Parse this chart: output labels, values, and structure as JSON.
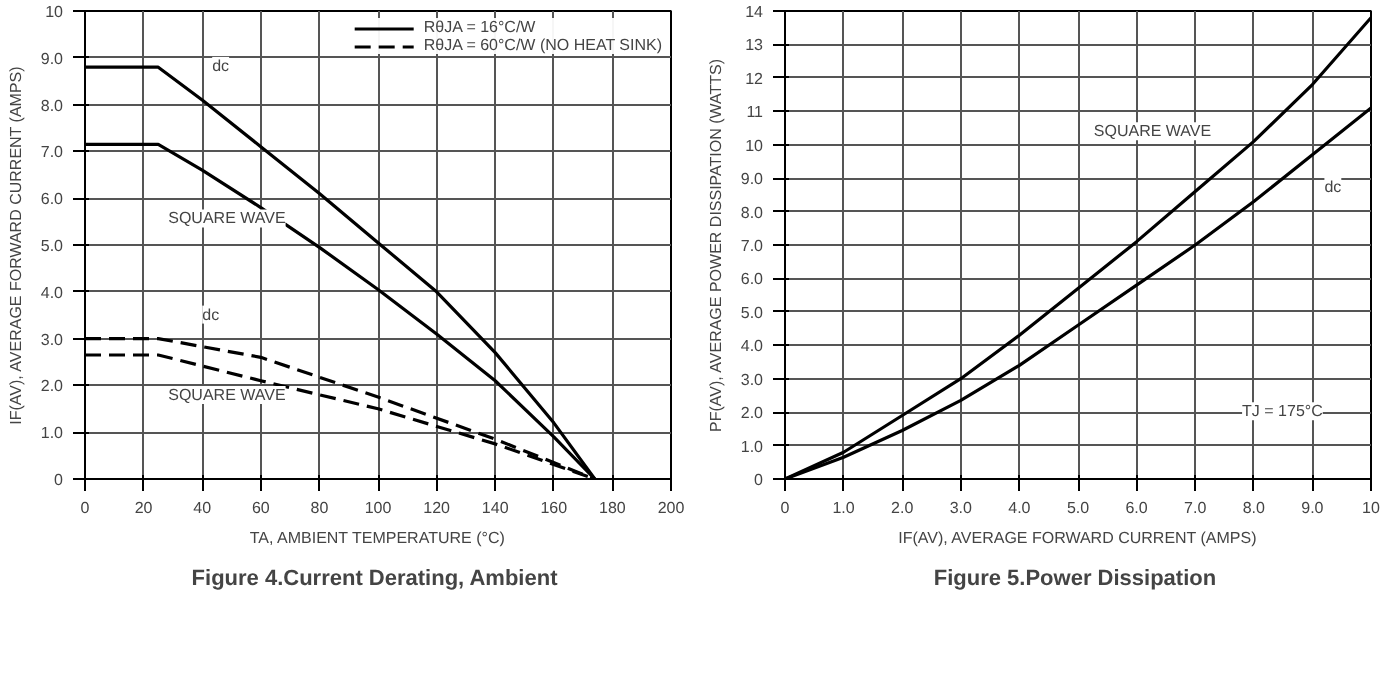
{
  "chart_data": [
    {
      "type": "line",
      "title": "Figure 4.Current  Derating, Ambient",
      "xlabel": "TA, AMBIENT TEMPERATURE (°C)",
      "ylabel": "IF(AV), AVERAGE FORWARD CURRENT (AMPS)",
      "xlim": [
        0,
        200
      ],
      "xticks": [
        0,
        20,
        40,
        60,
        80,
        100,
        120,
        140,
        160,
        180,
        200
      ],
      "ylim": [
        0,
        10
      ],
      "yticks": [
        0,
        {
          "value": 1,
          "label": "1.0"
        },
        {
          "value": 2,
          "label": "2.0"
        },
        {
          "value": 3,
          "label": "3.0"
        },
        {
          "value": 4,
          "label": "4.0"
        },
        {
          "value": 5,
          "label": "5.0"
        },
        {
          "value": 6,
          "label": "6.0"
        },
        {
          "value": 7,
          "label": "7.0"
        },
        {
          "value": 8,
          "label": "8.0"
        },
        {
          "value": 9,
          "label": "9.0"
        },
        10
      ],
      "grid": true,
      "legend": "top right",
      "marker": "none",
      "series": [
        {
          "name": "RθJA = 16°C/W",
          "color": "#000000",
          "line_style": "solid",
          "x": [
            0,
            25,
            40,
            60,
            80,
            100,
            120,
            140,
            160,
            174
          ],
          "values": [
            8.8,
            8.8,
            8.1,
            7.1,
            6.1,
            5.05,
            4.0,
            2.7,
            1.2,
            0
          ]
        },
        {
          "color": "#000000",
          "line_style": "solid",
          "x": [
            0,
            25,
            40,
            60,
            80,
            100,
            120,
            140,
            160,
            174
          ],
          "values": [
            7.15,
            7.15,
            6.6,
            5.8,
            4.95,
            4.05,
            3.1,
            2.1,
            0.9,
            0
          ]
        },
        {
          "name": "RθJA = 60°C/W (NO HEAT SINK)",
          "color": "#000000",
          "line_style": "dashed",
          "x": [
            0,
            25,
            60,
            100,
            140,
            174
          ],
          "values": [
            3.0,
            3.0,
            2.6,
            1.75,
            0.85,
            0
          ]
        },
        {
          "color": "#000000",
          "line_style": "dashed",
          "x": [
            0,
            25,
            60,
            100,
            140,
            174
          ],
          "values": [
            2.65,
            2.65,
            2.1,
            1.5,
            0.75,
            0
          ]
        }
      ],
      "annotations": [
        "dc",
        "SQUARE WAVE",
        "dc",
        "SQUARE WAVE"
      ]
    },
    {
      "type": "line",
      "title": "Figure 5.Power  Dissipation",
      "xlabel": "IF(AV), AVERAGE FORWARD CURRENT (AMPS)",
      "ylabel": "PF(AV), AVERAGE POWER DISSIPATION (WATTS)",
      "xlim": [
        0,
        10
      ],
      "xticks": [
        0,
        {
          "value": 1,
          "label": "1.0"
        },
        {
          "value": 2,
          "label": "2.0"
        },
        {
          "value": 3,
          "label": "3.0"
        },
        {
          "value": 4,
          "label": "4.0"
        },
        {
          "value": 5,
          "label": "5.0"
        },
        {
          "value": 6,
          "label": "6.0"
        },
        {
          "value": 7,
          "label": "7.0"
        },
        {
          "value": 8,
          "label": "8.0"
        },
        {
          "value": 9,
          "label": "9.0"
        },
        10
      ],
      "ylim": [
        0,
        14
      ],
      "yticks": [
        0,
        {
          "value": 1,
          "label": "1.0"
        },
        {
          "value": 2,
          "label": "2.0"
        },
        {
          "value": 3,
          "label": "3.0"
        },
        {
          "value": 4,
          "label": "4.0"
        },
        {
          "value": 5,
          "label": "5.0"
        },
        {
          "value": 6,
          "label": "6.0"
        },
        {
          "value": 7,
          "label": "7.0"
        },
        {
          "value": 8,
          "label": "8.0"
        },
        {
          "value": 9,
          "label": "9.0"
        },
        10,
        11,
        12,
        13,
        14
      ],
      "grid": true,
      "marker": "none",
      "series": [
        {
          "color": "#000000",
          "x": [
            0,
            1,
            2,
            3,
            4,
            5,
            6,
            7,
            8,
            9,
            10
          ],
          "values": [
            0,
            0.8,
            1.9,
            3.0,
            4.3,
            5.7,
            7.1,
            8.6,
            10.1,
            11.8,
            13.8
          ]
        },
        {
          "color": "#000000",
          "x": [
            0,
            1,
            2,
            3,
            4,
            5,
            6,
            7,
            8,
            9,
            10
          ],
          "values": [
            0,
            0.65,
            1.45,
            2.35,
            3.4,
            4.6,
            5.8,
            7.0,
            8.3,
            9.7,
            11.1
          ]
        }
      ],
      "annotations": [
        "SQUARE WAVE",
        "dc",
        "TJ = 175°C"
      ]
    }
  ]
}
